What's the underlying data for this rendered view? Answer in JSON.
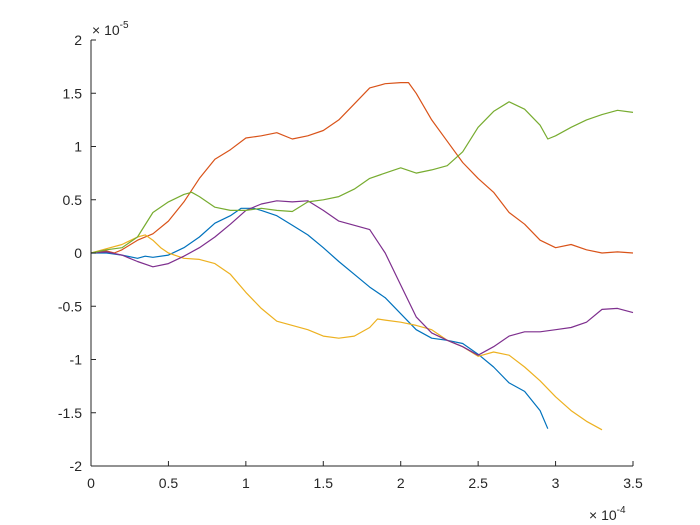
{
  "chart_data": {
    "type": "line",
    "title": "",
    "xlabel": "",
    "ylabel": "",
    "x_exponent_label": {
      "base": "× 10",
      "exp": "-4"
    },
    "y_exponent_label": {
      "base": "× 10",
      "exp": "-5"
    },
    "xlim": [
      0,
      3.5
    ],
    "ylim": [
      -2,
      2
    ],
    "x_ticks": [
      0,
      0.5,
      1,
      1.5,
      2,
      2.5,
      3,
      3.5
    ],
    "x_tick_labels": [
      "0",
      "0.5",
      "1",
      "1.5",
      "2",
      "2.5",
      "3",
      "3.5"
    ],
    "y_ticks": [
      -2,
      -1.5,
      -1,
      -0.5,
      0,
      0.5,
      1,
      1.5,
      2
    ],
    "y_tick_labels": [
      "-2",
      "-1.5",
      "-1",
      "-0.5",
      "0",
      "0.5",
      "1",
      "1.5",
      "2"
    ],
    "grid": false,
    "series": [
      {
        "color": "#0072BD",
        "points": [
          [
            0,
            0
          ],
          [
            0.1,
            0
          ],
          [
            0.2,
            -0.02
          ],
          [
            0.3,
            -0.05
          ],
          [
            0.35,
            -0.03
          ],
          [
            0.4,
            -0.04
          ],
          [
            0.5,
            -0.02
          ],
          [
            0.6,
            0.05
          ],
          [
            0.7,
            0.15
          ],
          [
            0.8,
            0.28
          ],
          [
            0.9,
            0.35
          ],
          [
            0.97,
            0.42
          ],
          [
            1.05,
            0.42
          ],
          [
            1.1,
            0.4
          ],
          [
            1.2,
            0.35
          ],
          [
            1.3,
            0.26
          ],
          [
            1.4,
            0.17
          ],
          [
            1.5,
            0.05
          ],
          [
            1.6,
            -0.08
          ],
          [
            1.7,
            -0.2
          ],
          [
            1.8,
            -0.32
          ],
          [
            1.9,
            -0.42
          ],
          [
            2.0,
            -0.57
          ],
          [
            2.1,
            -0.72
          ],
          [
            2.2,
            -0.8
          ],
          [
            2.3,
            -0.82
          ],
          [
            2.4,
            -0.85
          ],
          [
            2.5,
            -0.95
          ],
          [
            2.6,
            -1.07
          ],
          [
            2.7,
            -1.22
          ],
          [
            2.8,
            -1.3
          ],
          [
            2.9,
            -1.48
          ],
          [
            2.95,
            -1.65
          ]
        ]
      },
      {
        "color": "#D95319",
        "points": [
          [
            0,
            0
          ],
          [
            0.1,
            0.02
          ],
          [
            0.15,
            0
          ],
          [
            0.2,
            0.03
          ],
          [
            0.3,
            0.12
          ],
          [
            0.4,
            0.18
          ],
          [
            0.5,
            0.3
          ],
          [
            0.6,
            0.48
          ],
          [
            0.7,
            0.7
          ],
          [
            0.8,
            0.88
          ],
          [
            0.9,
            0.97
          ],
          [
            1.0,
            1.08
          ],
          [
            1.1,
            1.1
          ],
          [
            1.2,
            1.13
          ],
          [
            1.3,
            1.07
          ],
          [
            1.4,
            1.1
          ],
          [
            1.5,
            1.15
          ],
          [
            1.6,
            1.25
          ],
          [
            1.7,
            1.4
          ],
          [
            1.8,
            1.55
          ],
          [
            1.9,
            1.59
          ],
          [
            2.0,
            1.6
          ],
          [
            2.05,
            1.6
          ],
          [
            2.1,
            1.5
          ],
          [
            2.2,
            1.25
          ],
          [
            2.3,
            1.05
          ],
          [
            2.4,
            0.85
          ],
          [
            2.5,
            0.7
          ],
          [
            2.6,
            0.57
          ],
          [
            2.7,
            0.38
          ],
          [
            2.8,
            0.27
          ],
          [
            2.9,
            0.12
          ],
          [
            3.0,
            0.05
          ],
          [
            3.1,
            0.08
          ],
          [
            3.2,
            0.03
          ],
          [
            3.3,
            0
          ],
          [
            3.4,
            0.01
          ],
          [
            3.5,
            0
          ]
        ]
      },
      {
        "color": "#EDB120",
        "points": [
          [
            0,
            0
          ],
          [
            0.1,
            0.04
          ],
          [
            0.2,
            0.08
          ],
          [
            0.3,
            0.15
          ],
          [
            0.35,
            0.17
          ],
          [
            0.4,
            0.12
          ],
          [
            0.45,
            0.05
          ],
          [
            0.5,
            0
          ],
          [
            0.6,
            -0.05
          ],
          [
            0.7,
            -0.06
          ],
          [
            0.8,
            -0.1
          ],
          [
            0.9,
            -0.2
          ],
          [
            1.0,
            -0.37
          ],
          [
            1.1,
            -0.52
          ],
          [
            1.2,
            -0.64
          ],
          [
            1.3,
            -0.68
          ],
          [
            1.4,
            -0.72
          ],
          [
            1.5,
            -0.78
          ],
          [
            1.6,
            -0.8
          ],
          [
            1.7,
            -0.78
          ],
          [
            1.8,
            -0.7
          ],
          [
            1.85,
            -0.62
          ],
          [
            1.9,
            -0.63
          ],
          [
            2.0,
            -0.65
          ],
          [
            2.1,
            -0.68
          ],
          [
            2.2,
            -0.72
          ],
          [
            2.3,
            -0.82
          ],
          [
            2.4,
            -0.88
          ],
          [
            2.5,
            -0.97
          ],
          [
            2.6,
            -0.93
          ],
          [
            2.7,
            -0.96
          ],
          [
            2.8,
            -1.07
          ],
          [
            2.9,
            -1.2
          ],
          [
            3.0,
            -1.35
          ],
          [
            3.1,
            -1.48
          ],
          [
            3.2,
            -1.58
          ],
          [
            3.3,
            -1.66
          ]
        ]
      },
      {
        "color": "#7E2F8E",
        "points": [
          [
            0,
            0
          ],
          [
            0.1,
            0.01
          ],
          [
            0.2,
            -0.02
          ],
          [
            0.3,
            -0.08
          ],
          [
            0.4,
            -0.13
          ],
          [
            0.5,
            -0.1
          ],
          [
            0.6,
            -0.03
          ],
          [
            0.7,
            0.05
          ],
          [
            0.8,
            0.15
          ],
          [
            0.9,
            0.27
          ],
          [
            1.0,
            0.4
          ],
          [
            1.1,
            0.46
          ],
          [
            1.2,
            0.49
          ],
          [
            1.3,
            0.48
          ],
          [
            1.4,
            0.49
          ],
          [
            1.5,
            0.4
          ],
          [
            1.6,
            0.3
          ],
          [
            1.7,
            0.26
          ],
          [
            1.8,
            0.22
          ],
          [
            1.9,
            0
          ],
          [
            2.0,
            -0.3
          ],
          [
            2.1,
            -0.6
          ],
          [
            2.2,
            -0.75
          ],
          [
            2.3,
            -0.82
          ],
          [
            2.4,
            -0.88
          ],
          [
            2.5,
            -0.96
          ],
          [
            2.6,
            -0.88
          ],
          [
            2.7,
            -0.78
          ],
          [
            2.8,
            -0.74
          ],
          [
            2.9,
            -0.74
          ],
          [
            3.0,
            -0.72
          ],
          [
            3.1,
            -0.7
          ],
          [
            3.2,
            -0.65
          ],
          [
            3.3,
            -0.53
          ],
          [
            3.4,
            -0.52
          ],
          [
            3.5,
            -0.56
          ]
        ]
      },
      {
        "color": "#77AC30",
        "points": [
          [
            0,
            0
          ],
          [
            0.1,
            0.03
          ],
          [
            0.2,
            0.05
          ],
          [
            0.3,
            0.15
          ],
          [
            0.4,
            0.38
          ],
          [
            0.5,
            0.48
          ],
          [
            0.6,
            0.55
          ],
          [
            0.65,
            0.57
          ],
          [
            0.7,
            0.53
          ],
          [
            0.8,
            0.43
          ],
          [
            0.9,
            0.4
          ],
          [
            1.0,
            0.4
          ],
          [
            1.1,
            0.42
          ],
          [
            1.2,
            0.4
          ],
          [
            1.3,
            0.39
          ],
          [
            1.4,
            0.48
          ],
          [
            1.5,
            0.5
          ],
          [
            1.6,
            0.53
          ],
          [
            1.7,
            0.6
          ],
          [
            1.8,
            0.7
          ],
          [
            1.9,
            0.75
          ],
          [
            2.0,
            0.8
          ],
          [
            2.1,
            0.75
          ],
          [
            2.2,
            0.78
          ],
          [
            2.3,
            0.82
          ],
          [
            2.4,
            0.95
          ],
          [
            2.5,
            1.18
          ],
          [
            2.6,
            1.33
          ],
          [
            2.7,
            1.42
          ],
          [
            2.8,
            1.35
          ],
          [
            2.9,
            1.2
          ],
          [
            2.95,
            1.07
          ],
          [
            3.0,
            1.1
          ],
          [
            3.1,
            1.18
          ],
          [
            3.2,
            1.25
          ],
          [
            3.3,
            1.3
          ],
          [
            3.4,
            1.34
          ],
          [
            3.5,
            1.32
          ]
        ]
      }
    ]
  }
}
